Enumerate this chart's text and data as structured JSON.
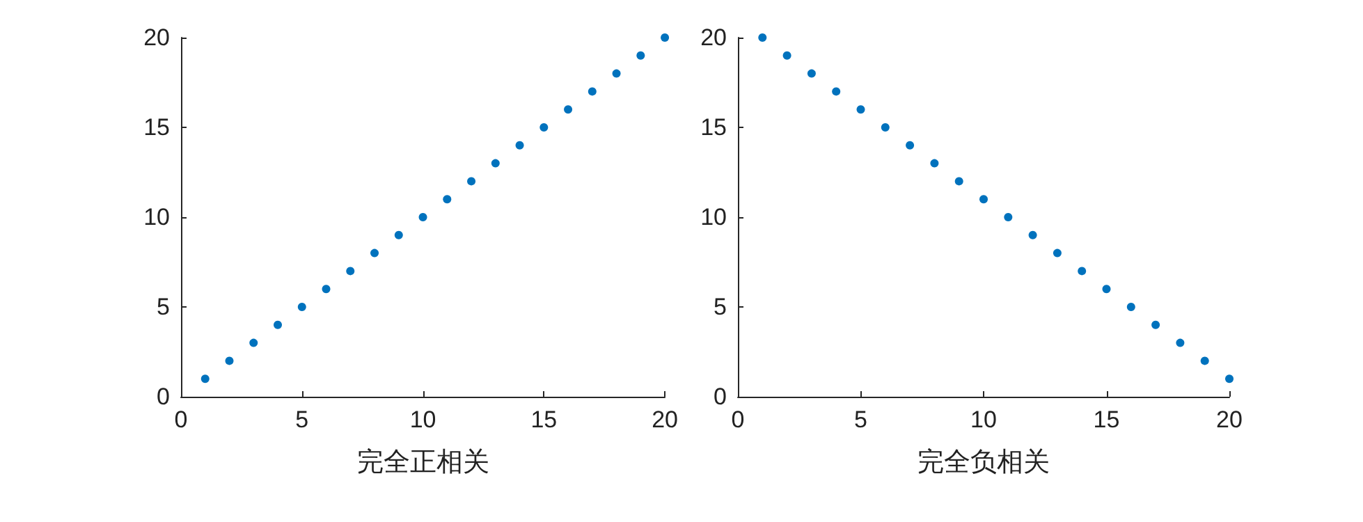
{
  "chart_data": [
    {
      "type": "scatter",
      "xlabel": "完全正相关",
      "x": [
        1,
        2,
        3,
        4,
        5,
        6,
        7,
        8,
        9,
        10,
        11,
        12,
        13,
        14,
        15,
        16,
        17,
        18,
        19,
        20
      ],
      "series": [
        {
          "color": "#0072bd",
          "values": [
            1,
            2,
            3,
            4,
            5,
            6,
            7,
            8,
            9,
            10,
            11,
            12,
            13,
            14,
            15,
            16,
            17,
            18,
            19,
            20
          ]
        }
      ],
      "xlim": [
        0,
        20
      ],
      "xticks": [
        0,
        5,
        10,
        15,
        20
      ],
      "ylim": [
        0,
        20
      ],
      "yticks": [
        0,
        5,
        10,
        15,
        20
      ],
      "marker": "circle",
      "grid": false
    },
    {
      "type": "scatter",
      "xlabel": "完全负相关",
      "x": [
        1,
        2,
        3,
        4,
        5,
        6,
        7,
        8,
        9,
        10,
        11,
        12,
        13,
        14,
        15,
        16,
        17,
        18,
        19,
        20
      ],
      "series": [
        {
          "color": "#0072bd",
          "values": [
            20,
            19,
            18,
            17,
            16,
            15,
            14,
            13,
            12,
            11,
            10,
            9,
            8,
            7,
            6,
            5,
            4,
            3,
            2,
            1
          ]
        }
      ],
      "xlim": [
        0,
        20
      ],
      "xticks": [
        0,
        5,
        10,
        15,
        20
      ],
      "ylim": [
        0,
        20
      ],
      "yticks": [
        0,
        5,
        10,
        15,
        20
      ],
      "marker": "circle",
      "grid": false
    }
  ]
}
